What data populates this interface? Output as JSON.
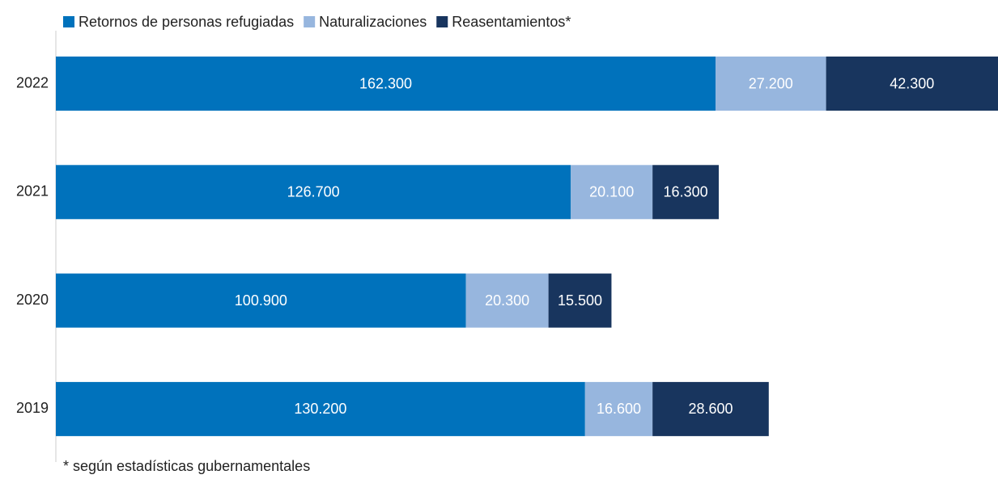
{
  "chart_data": {
    "type": "stacked-bar-horizontal",
    "categories": [
      "2022",
      "2021",
      "2020",
      "2019"
    ],
    "series": [
      {
        "name": "Retornos de personas refugiadas",
        "color": "#0072bc",
        "values": [
          162300,
          126700,
          100900,
          130200
        ],
        "value_labels": [
          "162.300",
          "126.700",
          "100.900",
          "130.200"
        ]
      },
      {
        "name": "Naturalizaciones",
        "color": "#97b6de",
        "values": [
          27200,
          20100,
          20300,
          16600
        ],
        "value_labels": [
          "27.200",
          "20.100",
          "20.300",
          "16.600"
        ]
      },
      {
        "name": "Reasentamientos*",
        "color": "#18355e",
        "values": [
          42300,
          16300,
          15500,
          28600
        ],
        "value_labels": [
          "42.300",
          "16.300",
          "15.500",
          "28.600"
        ]
      }
    ],
    "legend": "top-left",
    "footnote": "* según estadísticas gubernamentales"
  }
}
